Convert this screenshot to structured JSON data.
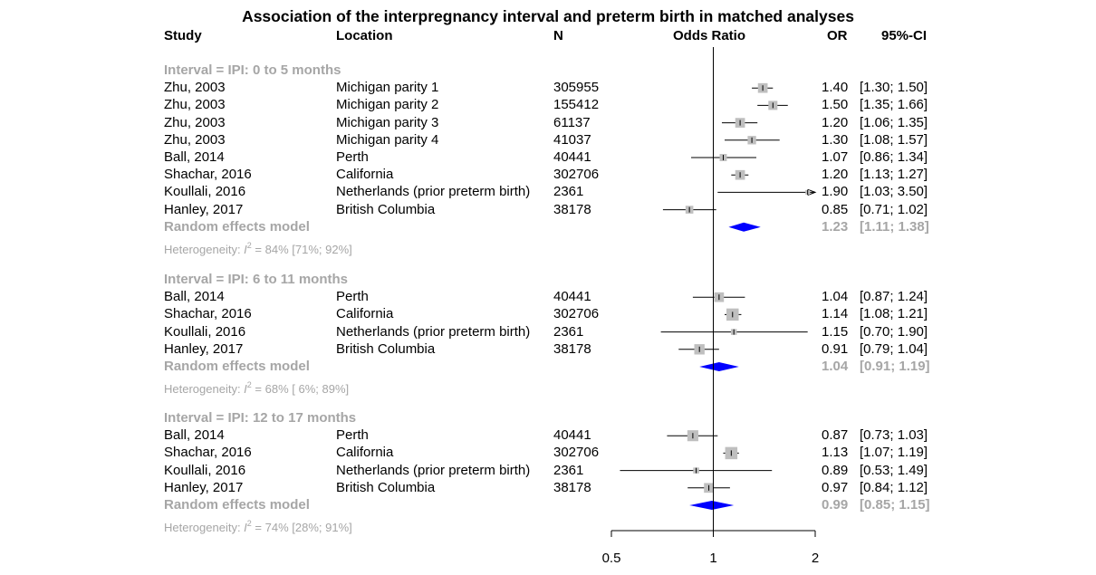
{
  "chart_data": {
    "type": "forest",
    "title": "Association of the interpregnancy interval and preterm birth in matched analyses",
    "columns": {
      "study": "Study",
      "location": "Location",
      "n": "N",
      "plot": "Odds Ratio",
      "or": "OR",
      "ci": "95%-CI"
    },
    "x_axis": {
      "scale": "log",
      "xlim": [
        0.5,
        2
      ],
      "ticks": [
        0.5,
        1,
        2
      ],
      "tick_labels": [
        "0.5",
        "1",
        "2"
      ],
      "reference_line": 1
    },
    "groups": [
      {
        "label": "Interval = IPI:  0 to 5 months",
        "studies": [
          {
            "study": "Zhu, 2003",
            "location": "Michigan parity 1",
            "n": "305955",
            "or": 1.4,
            "lo": 1.3,
            "hi": 1.5,
            "or_text": "1.40",
            "ci_text": "[1.30; 1.50]",
            "weight": 0.55
          },
          {
            "study": "Zhu, 2003",
            "location": "Michigan parity 2",
            "n": "155412",
            "or": 1.5,
            "lo": 1.35,
            "hi": 1.66,
            "or_text": "1.50",
            "ci_text": "[1.35; 1.66]",
            "weight": 0.5
          },
          {
            "study": "Zhu, 2003",
            "location": "Michigan parity 3",
            "n": "61137",
            "or": 1.2,
            "lo": 1.06,
            "hi": 1.35,
            "or_text": "1.20",
            "ci_text": "[1.06; 1.35]",
            "weight": 0.55
          },
          {
            "study": "Zhu, 2003",
            "location": "Michigan parity 4",
            "n": "41037",
            "or": 1.3,
            "lo": 1.08,
            "hi": 1.57,
            "or_text": "1.30",
            "ci_text": "[1.08; 1.57]",
            "weight": 0.45
          },
          {
            "study": "Ball, 2014",
            "location": "Perth",
            "n": "40441",
            "or": 1.07,
            "lo": 0.86,
            "hi": 1.34,
            "or_text": "1.07",
            "ci_text": "[0.86; 1.34]",
            "weight": 0.35
          },
          {
            "study": "Shachar, 2016",
            "location": "California",
            "n": "302706",
            "or": 1.2,
            "lo": 1.13,
            "hi": 1.27,
            "or_text": "1.20",
            "ci_text": "[1.13; 1.27]",
            "weight": 0.55
          },
          {
            "study": "Koullali, 2016",
            "location": "Netherlands (prior preterm birth)",
            "n": "2361",
            "or": 1.9,
            "lo": 1.03,
            "hi": 3.5,
            "or_text": "1.90",
            "ci_text": "[1.03; 3.50]",
            "weight": 0.1
          },
          {
            "study": "Hanley, 2017",
            "location": "British Columbia",
            "n": "38178",
            "or": 0.85,
            "lo": 0.71,
            "hi": 1.02,
            "or_text": "0.85",
            "ci_text": "[0.71; 1.02]",
            "weight": 0.4
          }
        ],
        "summary_label": "Random effects model",
        "summary": {
          "or": 1.23,
          "lo": 1.11,
          "hi": 1.38,
          "or_text": "1.23",
          "ci_text": "[1.11; 1.38]"
        },
        "heterogeneity": {
          "prefix": "Heterogeneity: ",
          "symbol": "I",
          "power": "2",
          "text": " = 84% [71%; 92%]"
        }
      },
      {
        "label": "Interval = IPI:  6 to 11 months",
        "studies": [
          {
            "study": "Ball, 2014",
            "location": "Perth",
            "n": "40441",
            "or": 1.04,
            "lo": 0.87,
            "hi": 1.24,
            "or_text": "1.04",
            "ci_text": "[0.87; 1.24]",
            "weight": 0.55
          },
          {
            "study": "Shachar, 2016",
            "location": "California",
            "n": "302706",
            "or": 1.14,
            "lo": 1.08,
            "hi": 1.21,
            "or_text": "1.14",
            "ci_text": "[1.08; 1.21]",
            "weight": 0.75
          },
          {
            "study": "Koullali, 2016",
            "location": "Netherlands (prior preterm birth)",
            "n": "2361",
            "or": 1.15,
            "lo": 0.7,
            "hi": 1.9,
            "or_text": "1.15",
            "ci_text": "[0.70; 1.90]",
            "weight": 0.25
          },
          {
            "study": "Hanley, 2017",
            "location": "British Columbia",
            "n": "38178",
            "or": 0.91,
            "lo": 0.79,
            "hi": 1.04,
            "or_text": "0.91",
            "ci_text": "[0.79; 1.04]",
            "weight": 0.6
          }
        ],
        "summary_label": "Random effects model",
        "summary": {
          "or": 1.04,
          "lo": 0.91,
          "hi": 1.19,
          "or_text": "1.04",
          "ci_text": "[0.91; 1.19]"
        },
        "heterogeneity": {
          "prefix": "Heterogeneity: ",
          "symbol": "I",
          "power": "2",
          "text": " = 68% [ 6%; 89%]"
        }
      },
      {
        "label": "Interval = IPI: 12 to 17 months",
        "studies": [
          {
            "study": "Ball, 2014",
            "location": "Perth",
            "n": "40441",
            "or": 0.87,
            "lo": 0.73,
            "hi": 1.03,
            "or_text": "0.87",
            "ci_text": "[0.73; 1.03]",
            "weight": 0.65
          },
          {
            "study": "Shachar, 2016",
            "location": "California",
            "n": "302706",
            "or": 1.13,
            "lo": 1.07,
            "hi": 1.19,
            "or_text": "1.13",
            "ci_text": "[1.07; 1.19]",
            "weight": 0.75
          },
          {
            "study": "Koullali, 2016",
            "location": "Netherlands (prior preterm birth)",
            "n": "2361",
            "or": 0.89,
            "lo": 0.53,
            "hi": 1.49,
            "or_text": "0.89",
            "ci_text": "[0.53; 1.49]",
            "weight": 0.25
          },
          {
            "study": "Hanley, 2017",
            "location": "British Columbia",
            "n": "38178",
            "or": 0.97,
            "lo": 0.84,
            "hi": 1.12,
            "or_text": "0.97",
            "ci_text": "[0.84; 1.12]",
            "weight": 0.55
          }
        ],
        "summary_label": "Random effects model",
        "summary": {
          "or": 0.99,
          "lo": 0.85,
          "hi": 1.15,
          "or_text": "0.99",
          "ci_text": "[0.85; 1.15]"
        },
        "heterogeneity": {
          "prefix": "Heterogeneity: ",
          "symbol": "I",
          "power": "2",
          "text": " = 74% [28%; 91%]"
        }
      }
    ],
    "colors": {
      "square": "#bfbfbf",
      "diamond": "#0000ff",
      "summary_text": "#a6a6a6",
      "line": "#000000"
    }
  }
}
